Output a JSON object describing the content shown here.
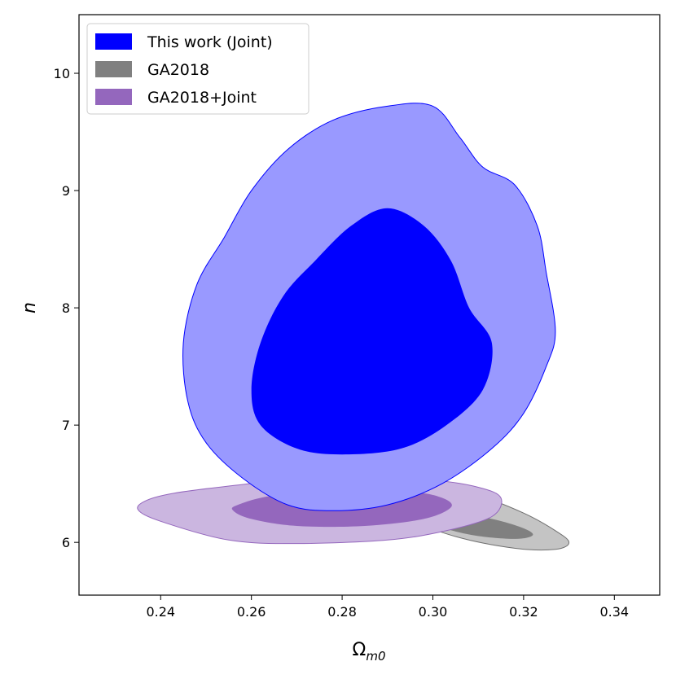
{
  "chart_data": {
    "type": "contour",
    "xlabel": "Ω",
    "xlabel_sub": "m0",
    "ylabel": "n",
    "xlim": [
      0.222,
      0.35
    ],
    "ylim": [
      5.55,
      10.5
    ],
    "xticks": [
      0.24,
      0.26,
      0.28,
      0.3,
      0.32,
      0.34
    ],
    "xtick_labels": [
      "0.24",
      "0.26",
      "0.28",
      "0.30",
      "0.32",
      "0.34"
    ],
    "yticks": [
      6,
      7,
      8,
      9,
      10
    ],
    "ytick_labels": [
      "6",
      "7",
      "8",
      "9",
      "10"
    ],
    "legend": {
      "position": "top-left",
      "entries": [
        {
          "label": "This work (Joint)",
          "color": "#0000ff"
        },
        {
          "label": "GA2018",
          "color": "#808080"
        },
        {
          "label": "GA2018+Joint",
          "color": "#9467bd"
        }
      ]
    },
    "series": [
      {
        "name": "GA2018",
        "colors": {
          "inner": "#808080",
          "outer": "#c4c4c4",
          "edge": "#707070"
        },
        "outer": [
          [
            0.29,
            6.46
          ],
          [
            0.3,
            6.48
          ],
          [
            0.31,
            6.4
          ],
          [
            0.32,
            6.25
          ],
          [
            0.327,
            6.1
          ],
          [
            0.33,
            6.0
          ],
          [
            0.327,
            5.94
          ],
          [
            0.318,
            5.95
          ],
          [
            0.305,
            6.05
          ],
          [
            0.293,
            6.22
          ],
          [
            0.287,
            6.35
          ],
          [
            0.287,
            6.43
          ]
        ],
        "inner": [
          [
            0.305,
            6.24
          ],
          [
            0.313,
            6.2
          ],
          [
            0.32,
            6.12
          ],
          [
            0.322,
            6.06
          ],
          [
            0.318,
            6.03
          ],
          [
            0.309,
            6.06
          ],
          [
            0.301,
            6.14
          ],
          [
            0.3,
            6.2
          ]
        ]
      },
      {
        "name": "GA2018+Joint",
        "colors": {
          "inner": "#9467bd",
          "outer": "#cbb6e0",
          "edge": "#9467bd"
        },
        "outer": [
          [
            0.237,
            6.36
          ],
          [
            0.243,
            6.42
          ],
          [
            0.255,
            6.48
          ],
          [
            0.27,
            6.54
          ],
          [
            0.285,
            6.55
          ],
          [
            0.3,
            6.53
          ],
          [
            0.31,
            6.47
          ],
          [
            0.315,
            6.38
          ],
          [
            0.313,
            6.22
          ],
          [
            0.303,
            6.1
          ],
          [
            0.29,
            6.02
          ],
          [
            0.27,
            5.99
          ],
          [
            0.255,
            6.02
          ],
          [
            0.24,
            6.18
          ],
          [
            0.235,
            6.28
          ]
        ],
        "inner": [
          [
            0.257,
            6.32
          ],
          [
            0.265,
            6.4
          ],
          [
            0.28,
            6.43
          ],
          [
            0.295,
            6.43
          ],
          [
            0.302,
            6.38
          ],
          [
            0.304,
            6.3
          ],
          [
            0.298,
            6.2
          ],
          [
            0.285,
            6.14
          ],
          [
            0.27,
            6.14
          ],
          [
            0.26,
            6.2
          ],
          [
            0.256,
            6.27
          ]
        ]
      },
      {
        "name": "This work (Joint)",
        "colors": {
          "inner": "#0000ff",
          "outer": "#9999ff",
          "edge": "#0000ff"
        },
        "outer": [
          [
            0.246,
            7.2
          ],
          [
            0.245,
            7.7
          ],
          [
            0.248,
            8.2
          ],
          [
            0.254,
            8.6
          ],
          [
            0.26,
            9.0
          ],
          [
            0.268,
            9.35
          ],
          [
            0.278,
            9.6
          ],
          [
            0.29,
            9.72
          ],
          [
            0.3,
            9.72
          ],
          [
            0.306,
            9.45
          ],
          [
            0.311,
            9.2
          ],
          [
            0.318,
            9.05
          ],
          [
            0.323,
            8.7
          ],
          [
            0.325,
            8.3
          ],
          [
            0.327,
            7.8
          ],
          [
            0.325,
            7.5
          ],
          [
            0.32,
            7.1
          ],
          [
            0.313,
            6.8
          ],
          [
            0.302,
            6.5
          ],
          [
            0.29,
            6.32
          ],
          [
            0.278,
            6.27
          ],
          [
            0.268,
            6.32
          ],
          [
            0.258,
            6.55
          ],
          [
            0.25,
            6.85
          ]
        ],
        "inner": [
          [
            0.26,
            7.3
          ],
          [
            0.262,
            7.7
          ],
          [
            0.267,
            8.1
          ],
          [
            0.274,
            8.4
          ],
          [
            0.282,
            8.7
          ],
          [
            0.29,
            8.85
          ],
          [
            0.298,
            8.7
          ],
          [
            0.304,
            8.4
          ],
          [
            0.308,
            8.0
          ],
          [
            0.313,
            7.7
          ],
          [
            0.311,
            7.3
          ],
          [
            0.303,
            7.0
          ],
          [
            0.293,
            6.8
          ],
          [
            0.28,
            6.75
          ],
          [
            0.27,
            6.8
          ],
          [
            0.262,
            7.0
          ]
        ]
      }
    ]
  }
}
